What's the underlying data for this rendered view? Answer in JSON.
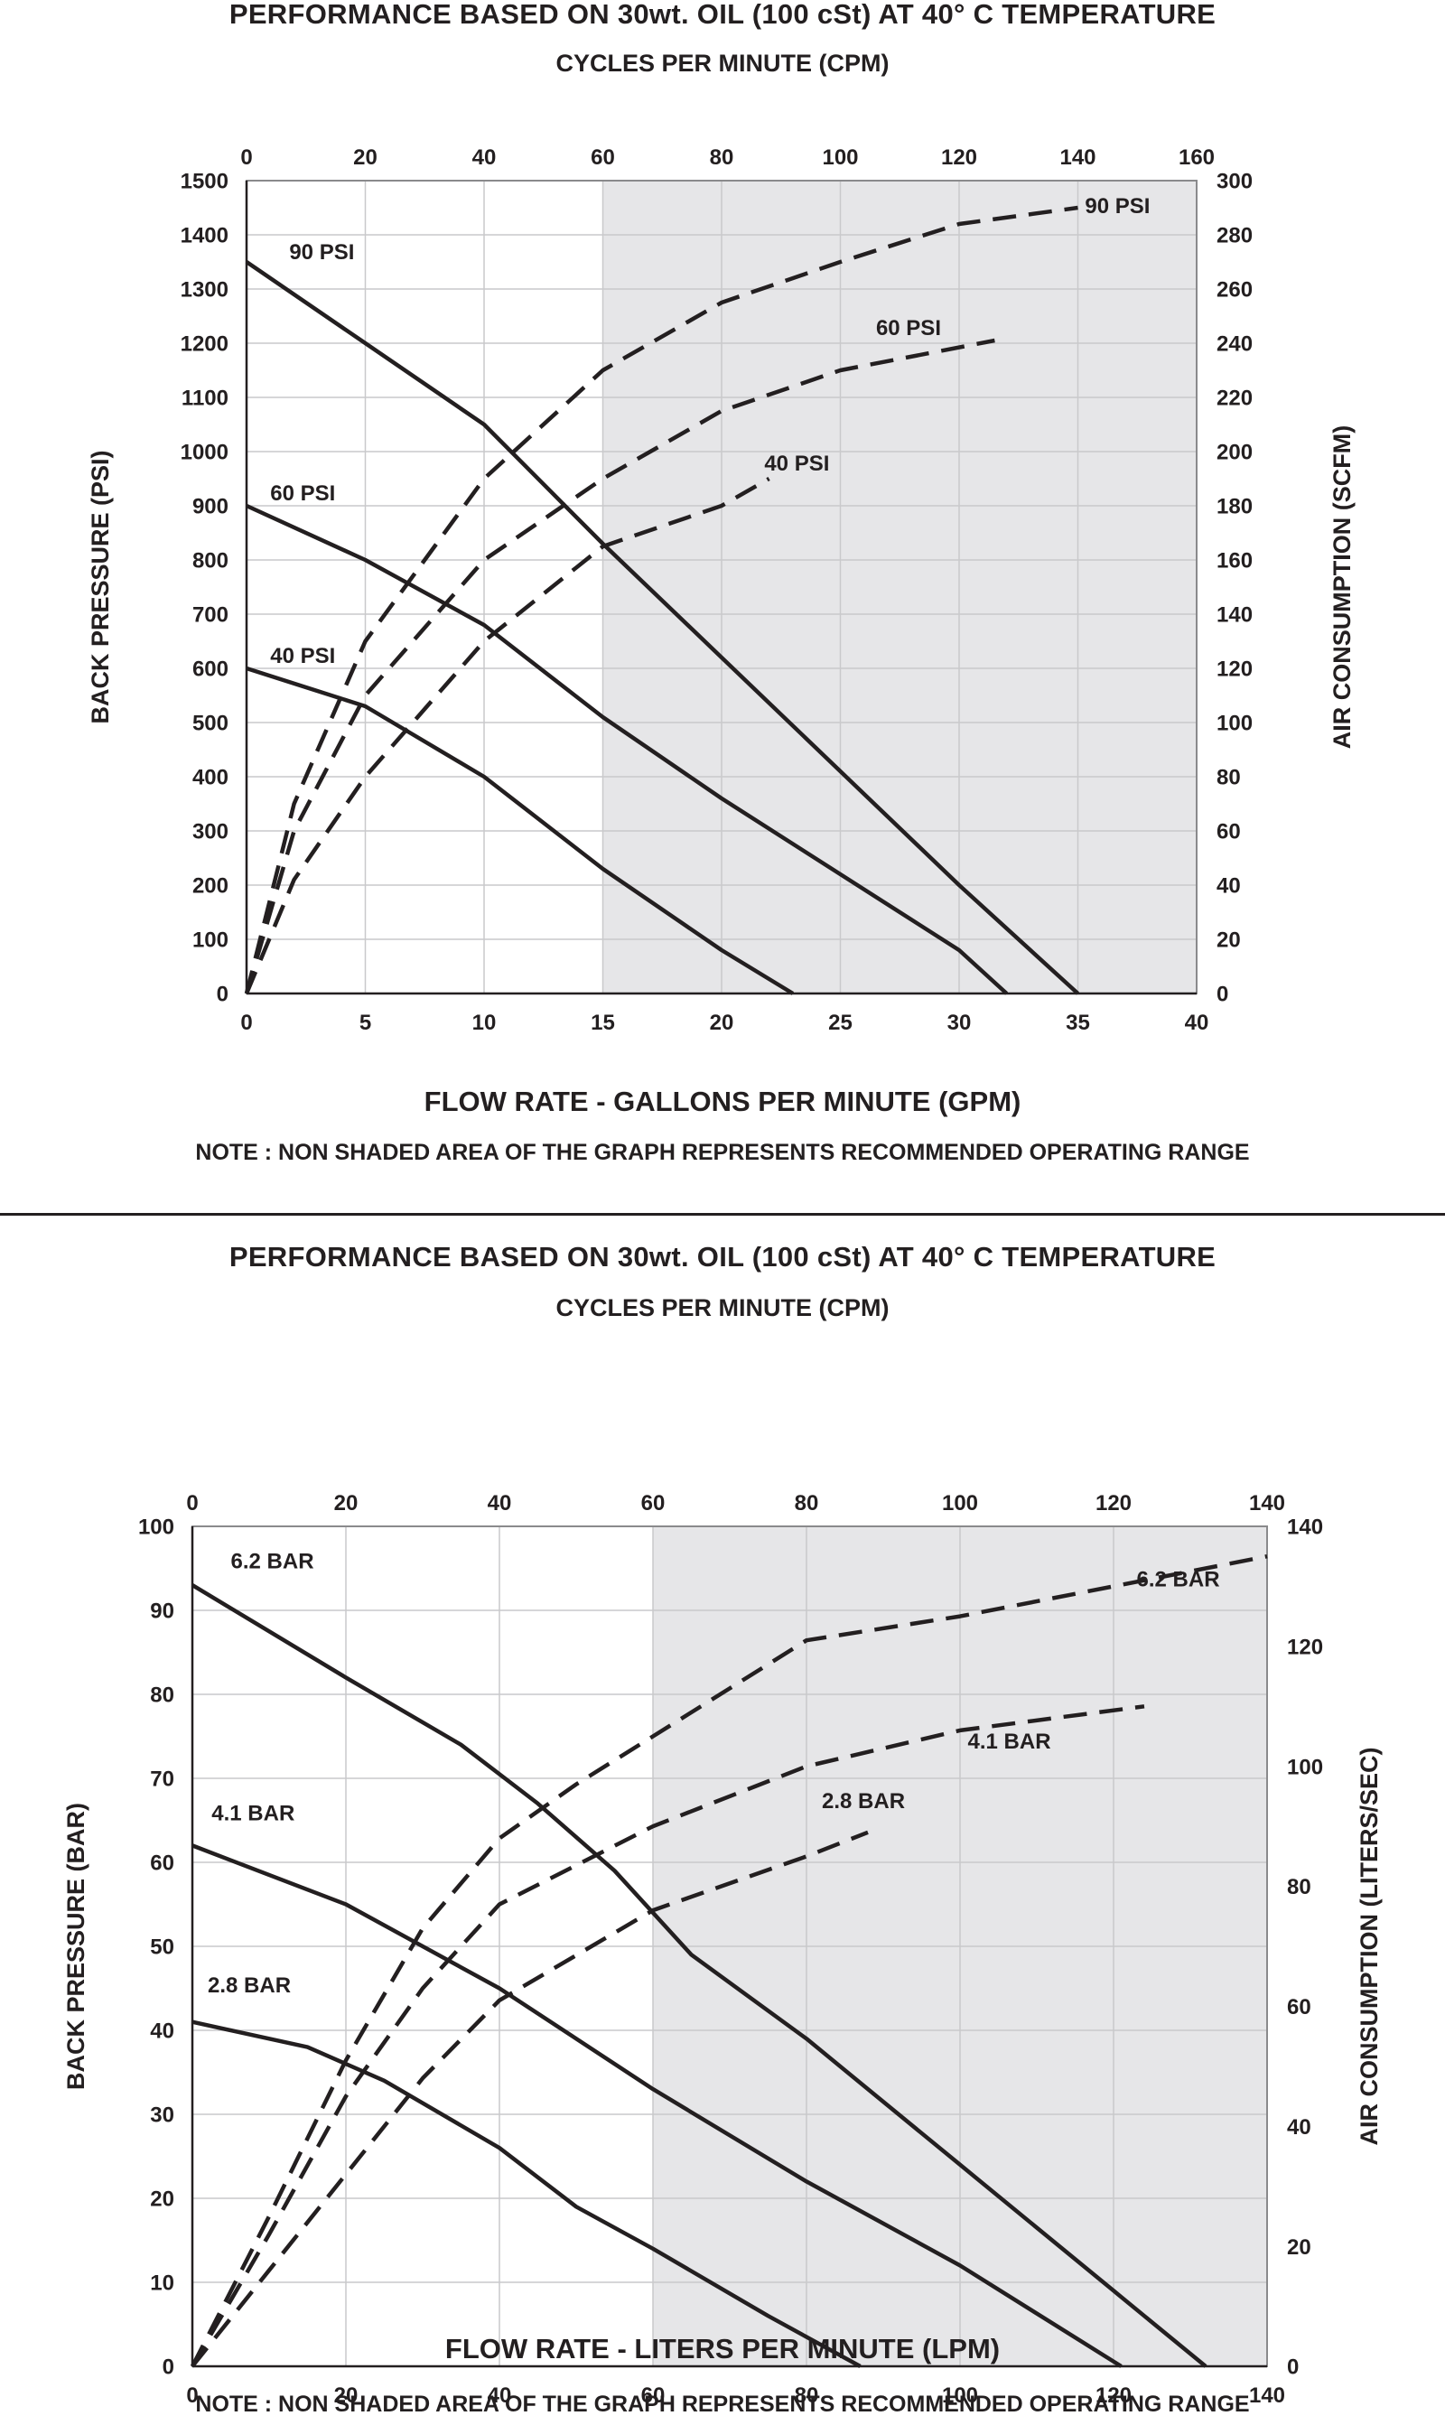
{
  "chart_data": [
    {
      "type": "line",
      "title": "PERFORMANCE  BASED ON 30wt. OIL (100 cSt) AT 40° C TEMPERATURE",
      "top_axis_label": "CYCLES PER MINUTE (CPM)",
      "xlabel": "FLOW RATE - GALLONS PER MINUTE (GPM)",
      "ylabel": "BACK PRESSURE  (PSI)",
      "y2label": "AIR CONSUMPTION  (SCFM)",
      "note": "NOTE : NON SHADED AREA OF THE GRAPH REPRESENTS RECOMMENDED OPERATING RANGE",
      "xlim": [
        0,
        40
      ],
      "ylim": [
        0,
        1500
      ],
      "y2lim": [
        0,
        300
      ],
      "toplim": [
        0,
        160
      ],
      "x_ticks": [
        0,
        5,
        10,
        15,
        20,
        25,
        30,
        35,
        40
      ],
      "y_ticks": [
        0,
        100,
        200,
        300,
        400,
        500,
        600,
        700,
        800,
        900,
        1000,
        1100,
        1200,
        1300,
        1400,
        1500
      ],
      "y2_ticks": [
        0,
        20,
        40,
        60,
        80,
        100,
        120,
        140,
        160,
        180,
        200,
        220,
        240,
        260,
        280,
        300
      ],
      "top_ticks": [
        0,
        20,
        40,
        60,
        80,
        100,
        120,
        140,
        160
      ],
      "shaded_from_x": 15,
      "grid": true,
      "series": [
        {
          "name": "90 PSI",
          "style": "solid",
          "label_x": 1.8,
          "label_y": 1355,
          "x": [
            0,
            5,
            10,
            15,
            20,
            25,
            30,
            35
          ],
          "y": [
            1350,
            1200,
            1050,
            830,
            620,
            410,
            200,
            0
          ]
        },
        {
          "name": "60 PSI",
          "style": "solid",
          "label_x": 1.0,
          "label_y": 910,
          "x": [
            0,
            5,
            10,
            15,
            20,
            25,
            30,
            32
          ],
          "y": [
            900,
            800,
            680,
            510,
            360,
            220,
            80,
            0
          ]
        },
        {
          "name": "40 PSI",
          "style": "solid",
          "label_x": 1.0,
          "label_y": 610,
          "x": [
            0,
            5,
            10,
            15,
            20,
            23
          ],
          "y": [
            600,
            530,
            400,
            230,
            80,
            0
          ]
        },
        {
          "name": "90 PSI",
          "style": "dashed",
          "axis": "right",
          "label_x": 35.3,
          "label_y": 288,
          "x": [
            0,
            2,
            5,
            10,
            15,
            20,
            25,
            30,
            35
          ],
          "y": [
            0,
            70,
            130,
            190,
            230,
            255,
            270,
            284,
            290
          ]
        },
        {
          "name": "60 PSI",
          "style": "dashed",
          "axis": "right",
          "label_x": 26.5,
          "label_y": 243,
          "x": [
            0,
            2,
            5,
            10,
            15,
            20,
            25,
            31.5
          ],
          "y": [
            0,
            60,
            110,
            160,
            190,
            215,
            230,
            241
          ]
        },
        {
          "name": "40 PSI",
          "style": "dashed",
          "axis": "right",
          "label_x": 21.8,
          "label_y": 193,
          "x": [
            0,
            2,
            5,
            10,
            15,
            20,
            22
          ],
          "y": [
            0,
            42,
            80,
            130,
            165,
            180,
            190
          ]
        }
      ]
    },
    {
      "type": "line",
      "title": "PERFORMANCE  BASED ON 30wt. OIL (100 cSt) AT 40° C TEMPERATURE",
      "top_axis_label": "CYCLES PER MINUTE (CPM)",
      "xlabel": "FLOW RATE - LITERS PER MINUTE (LPM)",
      "ylabel": "BACK PRESSURE  (BAR)",
      "y2label": "AIR CONSUMPTION  (LITERS/SEC)",
      "note": "NOTE : NON SHADED AREA OF THE GRAPH REPRESENTS RECOMMENDED OPERATING RANGE",
      "xlim": [
        0,
        140
      ],
      "ylim": [
        0,
        100
      ],
      "y2lim": [
        0,
        140
      ],
      "toplim": [
        0,
        140
      ],
      "x_ticks": [
        0,
        20,
        40,
        60,
        80,
        100,
        120,
        140
      ],
      "y_ticks": [
        0,
        10,
        20,
        30,
        40,
        50,
        60,
        70,
        80,
        90,
        100
      ],
      "y2_ticks": [
        0,
        20,
        40,
        60,
        80,
        100,
        120,
        140
      ],
      "top_ticks": [
        0,
        20,
        40,
        60,
        80,
        100,
        120,
        140
      ],
      "shaded_from_x": 60,
      "grid": true,
      "series": [
        {
          "name": "6.2 BAR",
          "style": "solid",
          "label_x": 5,
          "label_y": 95,
          "x": [
            0,
            20,
            35,
            45,
            55,
            65,
            80,
            100,
            120,
            132
          ],
          "y": [
            93,
            82,
            74,
            67,
            59,
            49,
            39,
            24,
            9,
            0
          ]
        },
        {
          "name": "4.1 BAR",
          "style": "solid",
          "label_x": 2.5,
          "label_y": 65,
          "x": [
            0,
            20,
            40,
            60,
            80,
            100,
            121
          ],
          "y": [
            62,
            55,
            45,
            33,
            22,
            12,
            0
          ]
        },
        {
          "name": "2.8 BAR",
          "style": "solid",
          "label_x": 2,
          "label_y": 44.5,
          "x": [
            0,
            15,
            25,
            40,
            50,
            60,
            75,
            87
          ],
          "y": [
            41,
            38,
            34,
            26,
            19,
            14,
            6,
            0
          ]
        },
        {
          "name": "6.2 BAR",
          "style": "dashed",
          "axis": "right",
          "label_x": 123,
          "label_y": 130,
          "x": [
            0,
            10,
            20,
            30,
            40,
            50,
            60,
            70,
            80,
            100,
            120,
            140
          ],
          "y": [
            0,
            25,
            51,
            73,
            88,
            97,
            105,
            113,
            121,
            125,
            130,
            135
          ]
        },
        {
          "name": "4.1 BAR",
          "style": "dashed",
          "axis": "right",
          "label_x": 101,
          "label_y": 103,
          "x": [
            0,
            10,
            20,
            30,
            40,
            60,
            80,
            100,
            124
          ],
          "y": [
            0,
            22,
            45,
            63,
            77,
            90,
            100,
            106,
            110
          ]
        },
        {
          "name": "2.8 BAR",
          "style": "dashed",
          "axis": "right",
          "label_x": 82,
          "label_y": 93,
          "x": [
            0,
            10,
            20,
            30,
            40,
            60,
            80,
            88
          ],
          "y": [
            0,
            16,
            32,
            48,
            61,
            76,
            85,
            89
          ]
        }
      ]
    }
  ]
}
